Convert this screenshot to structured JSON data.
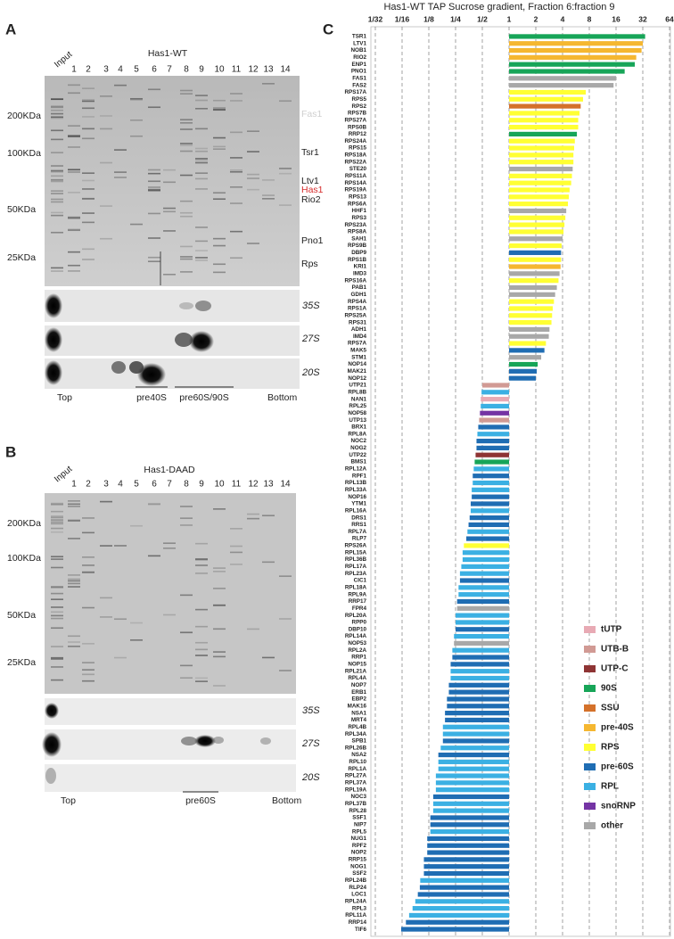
{
  "chart_data": {
    "type": "hbar-log",
    "title": "Has1-WT TAP Sucrose gradient, Fraction 6:fraction 9",
    "log_scale": true,
    "base": 1,
    "grid": true,
    "xlim": [
      0.03125,
      64
    ],
    "xticks": [
      {
        "value": 0.03125,
        "label": "1/32"
      },
      {
        "value": 0.0625,
        "label": "1/16"
      },
      {
        "value": 0.125,
        "label": "1/8"
      },
      {
        "value": 0.25,
        "label": "1/4"
      },
      {
        "value": 0.5,
        "label": "1/2"
      },
      1,
      2,
      4,
      8,
      16,
      32,
      64
    ],
    "legend": [
      {
        "name": "tUTP",
        "color": "#e8aab4"
      },
      {
        "name": "UTB-B",
        "color": "#d19a94"
      },
      {
        "name": "UTP-C",
        "color": "#8e3434"
      },
      {
        "name": "90S",
        "color": "#17a558"
      },
      {
        "name": "SSU",
        "color": "#d4712a"
      },
      {
        "name": "pre-40S",
        "color": "#f5b731"
      },
      {
        "name": "RPS",
        "color": "#ffff33"
      },
      {
        "name": "pre-60S",
        "color": "#1f6db3"
      },
      {
        "name": "RPL",
        "color": "#3bb0e3"
      },
      {
        "name": "snoRNP",
        "color": "#7434a4"
      },
      {
        "name": "other",
        "color": "#a8a8a8"
      }
    ],
    "legend_position": "lower right",
    "categories": [
      "TSR1",
      "LTV1",
      "NOB1",
      "RIO2",
      "ENP1",
      "PNO1",
      "FAS1",
      "FAS2",
      "RPS17A",
      "RPS5",
      "RPS2",
      "RPS7B",
      "RPS27A",
      "RPS0B",
      "RRP12",
      "RPS24A",
      "RPS15",
      "RPS18A",
      "RPS22A",
      "STE20",
      "RPS11A",
      "RPS14A",
      "RPS19A",
      "RPS13",
      "RPS6A",
      "HHF1",
      "RPS3",
      "RPS23A",
      "RPS8A",
      "SAH1",
      "RPS9B",
      "DBP9",
      "RPS1B",
      "KRI1",
      "IMD3",
      "RPS16A",
      "PAB1",
      "GDH1",
      "RPS4A",
      "RPS1A",
      "RPS25A",
      "RPS31",
      "ADH1",
      "IMD4",
      "RPS7A",
      "MAK5",
      "STM1",
      "NOP14",
      "MAK21",
      "NOP12",
      "UTP21",
      "RPL8B",
      "NAN1",
      "RPL25",
      "NOP58",
      "UTP13",
      "BRX1",
      "RPL8A",
      "NOC2",
      "NOG2",
      "UTP22",
      "BMS1",
      "RPL12A",
      "RPF1",
      "RPL13B",
      "RPL33A",
      "NOP16",
      "YTM1",
      "RPL16A",
      "DRS1",
      "RRS1",
      "RPL7A",
      "RLP7",
      "RPS26A",
      "RPL15A",
      "RPL36B",
      "RPL17A",
      "RPL23A",
      "CIC1",
      "RPL18A",
      "RPL9A",
      "RRP17",
      "FPR4",
      "RPL20A",
      "RPP0",
      "DBP10",
      "RPL14A",
      "NOP53",
      "RPL2A",
      "RRP1",
      "NOP15",
      "RPL21A",
      "RPL4A",
      "NOP7",
      "ERB1",
      "EBP2",
      "MAK16",
      "NSA1",
      "MRT4",
      "RPL4B",
      "RPL34A",
      "SPB1",
      "RPL26B",
      "NSA2",
      "RPL10",
      "RPL1A",
      "RPL27A",
      "RPL37A",
      "RPL19A",
      "NOC3",
      "RPL37B",
      "RPL28",
      "SSF1",
      "NIP7",
      "RPL5",
      "NUG1",
      "RPF2",
      "NOP2",
      "RRP15",
      "NOG1",
      "SSF2",
      "RPL24B",
      "RLP24",
      "LOC1",
      "RPL24A",
      "RPL3",
      "RPL11A",
      "RRP14",
      "TIF6"
    ],
    "values": [
      34,
      32,
      31,
      27,
      26,
      20,
      16,
      15,
      7.3,
      6.8,
      6.4,
      6.2,
      6.0,
      6.0,
      5.8,
      5.5,
      5.4,
      5.3,
      5.3,
      5.2,
      5.1,
      5.0,
      4.8,
      4.7,
      4.6,
      4.4,
      4.3,
      4.2,
      4.1,
      4.0,
      3.9,
      3.85,
      3.85,
      3.8,
      3.7,
      3.6,
      3.45,
      3.3,
      3.2,
      3.1,
      3.05,
      3.0,
      2.85,
      2.8,
      2.6,
      2.5,
      2.3,
      2.1,
      2.05,
      2.0,
      0.5,
      0.49,
      0.48,
      0.48,
      0.47,
      0.46,
      0.45,
      0.44,
      0.43,
      0.43,
      0.42,
      0.41,
      0.4,
      0.39,
      0.39,
      0.38,
      0.38,
      0.37,
      0.37,
      0.36,
      0.35,
      0.34,
      0.33,
      0.31,
      0.3,
      0.3,
      0.29,
      0.28,
      0.28,
      0.27,
      0.27,
      0.26,
      0.26,
      0.25,
      0.25,
      0.25,
      0.24,
      0.24,
      0.23,
      0.23,
      0.22,
      0.22,
      0.22,
      0.21,
      0.21,
      0.2,
      0.2,
      0.19,
      0.19,
      0.18,
      0.18,
      0.18,
      0.17,
      0.16,
      0.16,
      0.16,
      0.15,
      0.15,
      0.15,
      0.14,
      0.14,
      0.14,
      0.13,
      0.13,
      0.13,
      0.12,
      0.12,
      0.12,
      0.11,
      0.11,
      0.11,
      0.1,
      0.099,
      0.094,
      0.088,
      0.082,
      0.075,
      0.069,
      0.061
    ],
    "groups": [
      3,
      5,
      5,
      5,
      3,
      3,
      10,
      10,
      6,
      6,
      4,
      6,
      6,
      6,
      3,
      6,
      6,
      6,
      6,
      10,
      6,
      6,
      6,
      6,
      6,
      10,
      6,
      6,
      6,
      10,
      6,
      7,
      6,
      5,
      10,
      6,
      10,
      10,
      6,
      6,
      6,
      6,
      10,
      10,
      6,
      7,
      10,
      3,
      7,
      7,
      1,
      8,
      0,
      8,
      9,
      1,
      7,
      8,
      7,
      7,
      2,
      3,
      8,
      7,
      8,
      8,
      7,
      7,
      8,
      7,
      7,
      8,
      7,
      6,
      8,
      8,
      8,
      8,
      7,
      8,
      8,
      7,
      10,
      8,
      8,
      7,
      8,
      10,
      8,
      7,
      7,
      8,
      8,
      7,
      7,
      7,
      7,
      7,
      7,
      8,
      8,
      7,
      8,
      7,
      8,
      8,
      8,
      8,
      8,
      7,
      8,
      8,
      7,
      7,
      8,
      7,
      7,
      7,
      7,
      7,
      7,
      8,
      7,
      7,
      8,
      8,
      8,
      7,
      7
    ]
  },
  "panel_a": {
    "letter": "A",
    "title": "Has1-WT",
    "lanes": [
      "Input",
      "1",
      "2",
      "3",
      "4",
      "5",
      "6",
      "7",
      "8",
      "9",
      "10",
      "11",
      "12",
      "13",
      "14"
    ],
    "mw": [
      "200KDa",
      "100KDa",
      "50KDa",
      "25KDa"
    ],
    "proteins": [
      "Fas1",
      "Tsr1",
      "Ltv1",
      "Has1",
      "Rio2",
      "Pno1",
      "Rps"
    ],
    "blots": [
      "35S",
      "27S",
      "20S"
    ],
    "fractions": [
      "Top",
      "pre40S",
      "pre60S/90S",
      "Bottom"
    ]
  },
  "panel_b": {
    "letter": "B",
    "title": "Has1-DAAD",
    "lanes": [
      "Input",
      "1",
      "2",
      "3",
      "4",
      "5",
      "6",
      "7",
      "8",
      "9",
      "10",
      "11",
      "12",
      "13",
      "14"
    ],
    "mw": [
      "200KDa",
      "100KDa",
      "50KDa",
      "25KDa"
    ],
    "blots": [
      "35S",
      "27S",
      "20S"
    ],
    "fractions": [
      "Top",
      "pre60S",
      "Bottom"
    ]
  },
  "panel_c": {
    "letter": "C"
  }
}
